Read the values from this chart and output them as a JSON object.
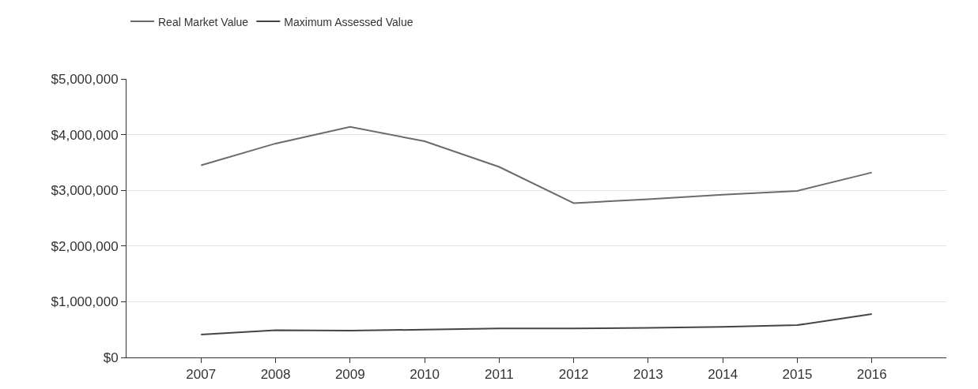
{
  "chart_data": {
    "type": "line",
    "categories": [
      "2007",
      "2008",
      "2009",
      "2010",
      "2011",
      "2012",
      "2013",
      "2014",
      "2015",
      "2016"
    ],
    "series": [
      {
        "name": "Real Market Value",
        "color": "#6b6b6b",
        "values": [
          3450000,
          3840000,
          4140000,
          3880000,
          3420000,
          2770000,
          2840000,
          2920000,
          2990000,
          3320000
        ]
      },
      {
        "name": "Maximum Assessed Value",
        "color": "#454545",
        "values": [
          410000,
          490000,
          480000,
          500000,
          520000,
          520000,
          530000,
          550000,
          580000,
          780000
        ]
      }
    ],
    "ylim": [
      0,
      5000000
    ],
    "yticks": [
      {
        "value": 0,
        "label": "$0"
      },
      {
        "value": 1000000,
        "label": "$1,000,000"
      },
      {
        "value": 2000000,
        "label": "$2,000,000"
      },
      {
        "value": 3000000,
        "label": "$3,000,000"
      },
      {
        "value": 4000000,
        "label": "$4,000,000"
      },
      {
        "value": 5000000,
        "label": "$5,000,000"
      }
    ],
    "grid": "y",
    "legend": "top left",
    "marker": "none",
    "line_style": "solid"
  }
}
